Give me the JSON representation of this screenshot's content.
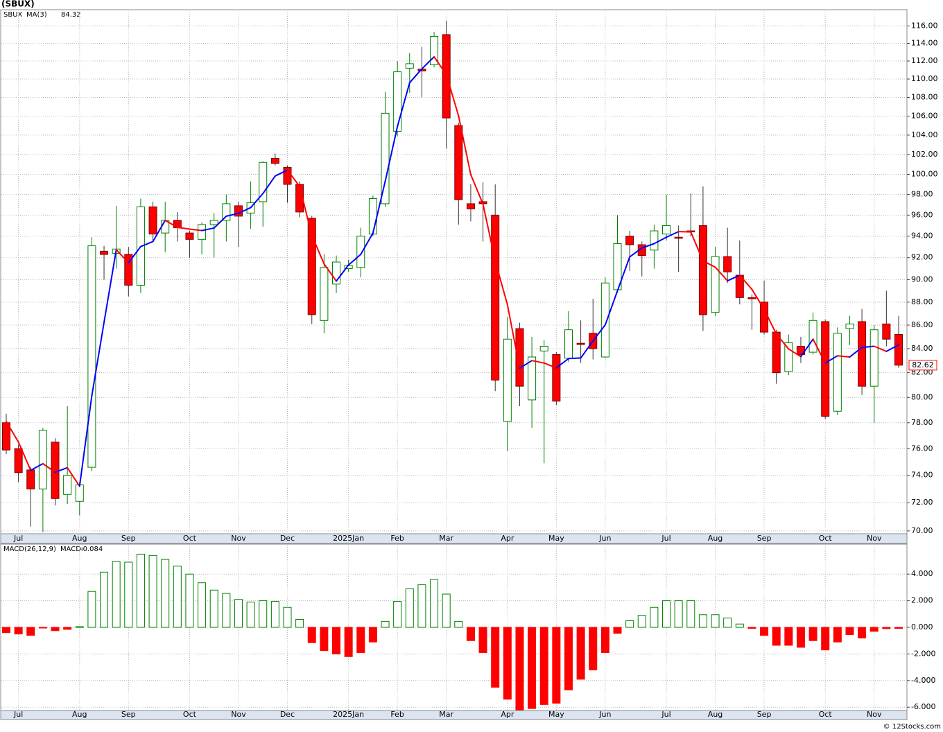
{
  "chart_data": [
    {
      "type": "candlestick",
      "title": "(SBUX)",
      "symbol": "SBUX",
      "symbol_color": "#008000",
      "categories": [
        null,
        "Jul",
        null,
        null,
        null,
        null,
        "Aug",
        null,
        null,
        null,
        "Sep",
        null,
        null,
        null,
        null,
        "Oct",
        null,
        null,
        null,
        "Nov",
        null,
        null,
        null,
        "Dec",
        null,
        null,
        null,
        null,
        "2025Jan",
        null,
        null,
        null,
        "Feb",
        null,
        null,
        null,
        "Mar",
        null,
        null,
        null,
        null,
        "Apr",
        null,
        null,
        null,
        "May",
        null,
        null,
        null,
        "Jun",
        null,
        null,
        null,
        null,
        "Jul",
        null,
        null,
        null,
        "Aug",
        null,
        null,
        null,
        "Sep",
        null,
        null,
        null,
        null,
        "Oct",
        null,
        null,
        null,
        "Nov",
        null,
        null
      ],
      "open": [
        78.0,
        76.0,
        74.4,
        73.0,
        76.5,
        72.6,
        72.1,
        74.6,
        92.6,
        92.4,
        92.3,
        89.5,
        96.8,
        94.3,
        95.5,
        94.3,
        93.7,
        95.1,
        95.5,
        96.9,
        96.2,
        97.3,
        101.6,
        100.7,
        99.0,
        95.7,
        86.4,
        89.6,
        91.0,
        91.1,
        94.2,
        97.1,
        104.4,
        111.2,
        111.1,
        111.6,
        115.0,
        105.0,
        97.1,
        97.3,
        96.0,
        78.1,
        85.7,
        79.8,
        83.8,
        83.5,
        83.2,
        84.45,
        85.3,
        83.3,
        89.1,
        94.0,
        93.2,
        92.7,
        94.2,
        93.9,
        94.5,
        95.0,
        87.1,
        92.1,
        90.4,
        88.4,
        88.0,
        85.4,
        82.1,
        84.2,
        83.7,
        86.3,
        78.9,
        85.7,
        86.3,
        80.9,
        86.1,
        85.2
      ],
      "high": [
        78.7,
        76.3,
        74.6,
        77.6,
        76.8,
        79.3,
        73.5,
        93.9,
        93.1,
        96.9,
        93.0,
        97.6,
        97.3,
        97.3,
        96.3,
        94.5,
        95.3,
        96.2,
        98.0,
        97.3,
        99.3,
        101.3,
        102.1,
        100.9,
        99.3,
        95.9,
        92.3,
        92.2,
        91.8,
        94.8,
        97.9,
        108.6,
        112.0,
        112.9,
        113.6,
        115.3,
        116.6,
        105.3,
        99.0,
        99.2,
        99.0,
        86.7,
        86.2,
        85.0,
        84.7,
        83.7,
        87.2,
        86.4,
        88.3,
        90.2,
        96.0,
        94.5,
        93.5,
        95.1,
        98.0,
        95.0,
        98.1,
        98.8,
        93.0,
        94.8,
        93.6,
        88.7,
        89.9,
        85.6,
        85.2,
        85.0,
        87.1,
        86.5,
        85.8,
        86.8,
        87.4,
        86.0,
        89.0,
        86.8
      ],
      "low": [
        75.6,
        73.5,
        70.3,
        69.9,
        71.8,
        71.9,
        71.1,
        74.3,
        90.0,
        91.0,
        88.5,
        88.8,
        93.5,
        92.5,
        93.5,
        92.0,
        92.3,
        92.0,
        93.5,
        93.0,
        94.7,
        94.9,
        100.9,
        97.2,
        95.8,
        86.1,
        85.3,
        88.8,
        90.7,
        90.2,
        94.0,
        96.8,
        103.9,
        108.5,
        108.0,
        111.3,
        102.6,
        95.1,
        95.4,
        93.5,
        80.5,
        75.8,
        79.3,
        77.6,
        74.9,
        79.4,
        82.9,
        82.8,
        83.1,
        83.2,
        88.8,
        90.8,
        90.3,
        91.0,
        93.6,
        90.7,
        94.0,
        85.5,
        86.8,
        89.7,
        87.8,
        85.6,
        85.2,
        81.1,
        81.8,
        82.8,
        83.5,
        78.3,
        78.6,
        84.3,
        80.2,
        78.0,
        84.2,
        82.4
      ],
      "close": [
        75.9,
        74.2,
        73.0,
        77.4,
        72.3,
        74.0,
        73.3,
        93.1,
        92.3,
        92.8,
        89.5,
        96.8,
        94.2,
        95.5,
        94.8,
        93.7,
        95.1,
        95.5,
        97.1,
        95.9,
        97.2,
        101.2,
        101.1,
        99.0,
        96.3,
        86.9,
        91.1,
        91.6,
        91.3,
        94.0,
        97.6,
        106.3,
        110.8,
        111.7,
        110.9,
        114.8,
        105.8,
        97.5,
        96.6,
        97.1,
        81.4,
        84.8,
        80.9,
        83.3,
        84.2,
        79.7,
        85.6,
        84.35,
        84.0,
        89.7,
        93.3,
        93.2,
        92.2,
        94.5,
        95.0,
        93.8,
        94.4,
        86.9,
        92.1,
        90.7,
        88.4,
        88.3,
        85.4,
        82.0,
        84.5,
        83.5,
        86.4,
        78.5,
        85.3,
        86.1,
        80.9,
        85.6,
        84.8,
        82.62
      ],
      "up_color": "#008000",
      "down_color": "#ff0000",
      "ma": {
        "name": "MA(3)",
        "up_color": "#0000ff",
        "down_color": "#ff0000",
        "values": [
          78.1,
          76.5,
          74.37,
          74.87,
          74.23,
          74.57,
          73.2,
          80.13,
          86.23,
          92.73,
          91.53,
          93.03,
          93.5,
          95.5,
          94.83,
          94.67,
          94.53,
          94.77,
          95.9,
          96.17,
          96.73,
          98.1,
          99.83,
          100.43,
          98.8,
          94.07,
          91.43,
          89.87,
          91.33,
          92.3,
          94.3,
          99.3,
          104.9,
          109.6,
          111.13,
          112.47,
          110.5,
          106.03,
          99.97,
          97.07,
          91.7,
          87.77,
          82.37,
          83.0,
          82.8,
          82.4,
          83.17,
          83.22,
          84.65,
          86.02,
          89.0,
          92.07,
          92.9,
          93.3,
          93.9,
          94.43,
          94.4,
          91.7,
          91.13,
          89.9,
          90.4,
          89.13,
          87.37,
          85.23,
          83.97,
          83.33,
          84.8,
          82.8,
          83.4,
          83.3,
          84.1,
          84.2,
          83.77,
          84.32
        ]
      },
      "log_scale": true,
      "grid": true,
      "ylim": [
        69.8,
        117.9
      ],
      "yticks": [
        {
          "value": 70,
          "label": "70.00"
        },
        {
          "value": 72,
          "label": "72.00"
        },
        {
          "value": 74,
          "label": "74.00"
        },
        {
          "value": 76,
          "label": "76.00"
        },
        {
          "value": 78,
          "label": "78.00"
        },
        {
          "value": 80,
          "label": "80.00"
        },
        {
          "value": 82,
          "label": "82.00"
        },
        {
          "value": 84,
          "label": "84.00"
        },
        {
          "value": 86,
          "label": "86.00"
        },
        {
          "value": 88,
          "label": "88.00"
        },
        {
          "value": 90,
          "label": "90.00"
        },
        {
          "value": 92,
          "label": "92.00"
        },
        {
          "value": 94,
          "label": "94.00"
        },
        {
          "value": 96,
          "label": "96.00"
        },
        {
          "value": 98,
          "label": "98.00"
        },
        {
          "value": 100,
          "label": "100.00"
        },
        {
          "value": 102,
          "label": "102.00"
        },
        {
          "value": 104,
          "label": "104.00"
        },
        {
          "value": 106,
          "label": "106.00"
        },
        {
          "value": 108,
          "label": "108.00"
        },
        {
          "value": 110,
          "label": "110.00"
        },
        {
          "value": 112,
          "label": "112.00"
        },
        {
          "value": 114,
          "label": "114.00"
        },
        {
          "value": 116,
          "label": "116.00"
        }
      ]
    },
    {
      "type": "macd",
      "name": "MACD(26,12,9)",
      "value_name": "MACD:",
      "value_color": "#0000ff",
      "categories": [
        null,
        "Jul",
        null,
        null,
        null,
        null,
        "Aug",
        null,
        null,
        null,
        "Sep",
        null,
        null,
        null,
        null,
        "Oct",
        null,
        null,
        null,
        "Nov",
        null,
        null,
        null,
        "Dec",
        null,
        null,
        null,
        null,
        "2025Jan",
        null,
        null,
        null,
        "Feb",
        null,
        null,
        null,
        "Mar",
        null,
        null,
        null,
        null,
        "Apr",
        null,
        null,
        null,
        "May",
        null,
        null,
        null,
        "Jun",
        null,
        null,
        null,
        null,
        "Jul",
        null,
        null,
        null,
        "Aug",
        null,
        null,
        null,
        "Sep",
        null,
        null,
        null,
        null,
        "Oct",
        null,
        null,
        null,
        "Nov",
        null,
        null
      ],
      "values": [
        -0.4,
        -0.5,
        -0.6,
        -0.05,
        -0.25,
        -0.15,
        0.05,
        2.7,
        4.15,
        4.95,
        4.9,
        5.5,
        5.4,
        5.1,
        4.6,
        4.0,
        3.35,
        2.8,
        2.55,
        2.1,
        1.9,
        2.0,
        1.95,
        1.5,
        0.6,
        -1.15,
        -1.75,
        -2.0,
        -2.2,
        -1.9,
        -1.1,
        0.45,
        1.95,
        2.9,
        3.2,
        3.6,
        2.5,
        0.45,
        -1.0,
        -1.9,
        -4.5,
        -5.4,
        -6.2,
        -6.1,
        -5.8,
        -5.7,
        -4.7,
        -3.9,
        -3.2,
        -1.9,
        -0.45,
        0.5,
        0.9,
        1.5,
        2.0,
        2.0,
        2.0,
        0.95,
        0.95,
        0.7,
        0.25,
        -0.08,
        -0.6,
        -1.35,
        -1.35,
        -1.5,
        -1.0,
        -1.7,
        -1.1,
        -0.55,
        -0.8,
        -0.3,
        -0.1,
        -0.084
      ],
      "pos_color": "#008000",
      "neg_color": "#ff0000",
      "grid": true,
      "ylim": [
        -6.25,
        6.2
      ],
      "yticks": [
        {
          "value": -6,
          "label": "-6.000"
        },
        {
          "value": -4,
          "label": "-4.000"
        },
        {
          "value": -2,
          "label": "-2.000"
        },
        {
          "value": 0,
          "label": "0.000"
        },
        {
          "value": 2,
          "label": "2.000"
        },
        {
          "value": 4,
          "label": "4.000"
        }
      ],
      "source": "© 12Stocks.com"
    }
  ]
}
